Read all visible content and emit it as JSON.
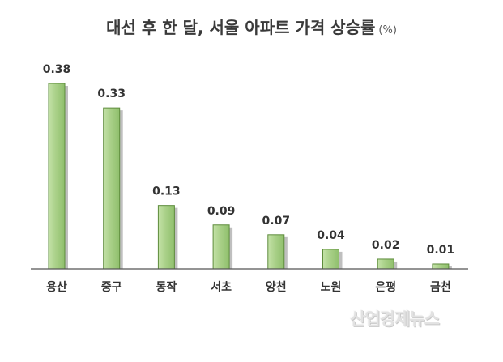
{
  "chart_data": {
    "type": "bar",
    "title": "대선 후 한 달, 서울 아파트 가격 상승률",
    "unit": "(%)",
    "categories": [
      "용산",
      "중구",
      "동작",
      "서초",
      "양천",
      "노원",
      "은평",
      "금천"
    ],
    "values": [
      0.38,
      0.33,
      0.13,
      0.09,
      0.07,
      0.04,
      0.02,
      0.01
    ],
    "value_labels": [
      "0.38",
      "0.33",
      "0.13",
      "0.09",
      "0.07",
      "0.04",
      "0.02",
      "0.01"
    ],
    "xlabel": "",
    "ylabel": "",
    "ylim": [
      0,
      0.4
    ],
    "grid": false,
    "legend": "none",
    "colors": {
      "bar_fill": "#a8cf88",
      "bar_stroke": "#5e8c3c",
      "shadow": "#8a8a8a",
      "axis": "#555555"
    }
  },
  "watermark": "산업경제뉴스"
}
